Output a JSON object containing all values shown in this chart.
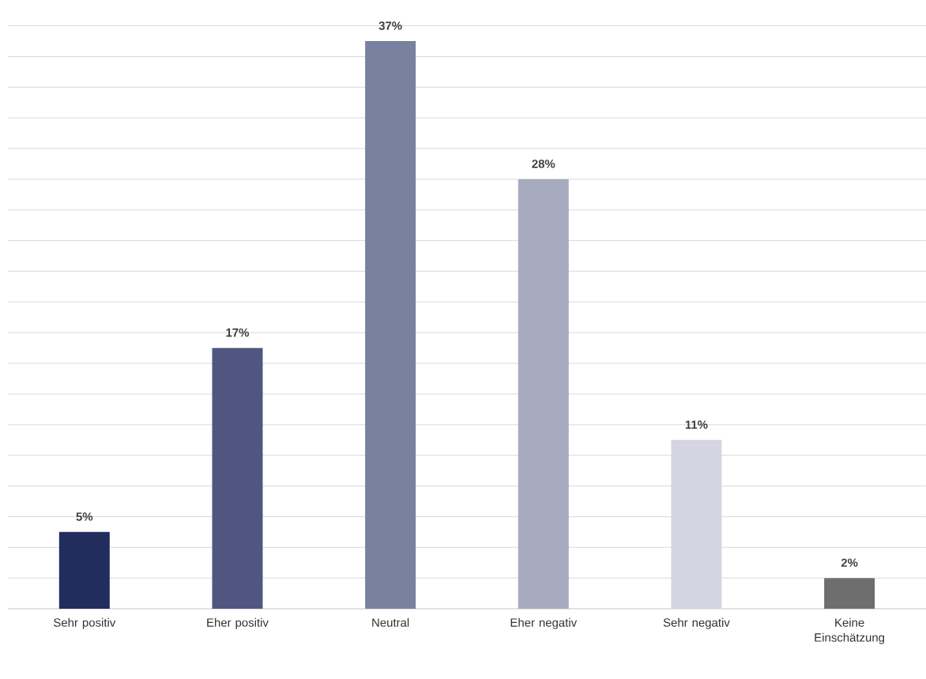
{
  "chart_data": {
    "type": "bar",
    "categories": [
      "Sehr positiv",
      "Eher positiv",
      "Neutral",
      "Eher negativ",
      "Sehr negativ",
      "Keine Einschätzung"
    ],
    "values": [
      5,
      17,
      37,
      28,
      11,
      2
    ],
    "colors": [
      "#222d5e",
      "#4f5781",
      "#78819f",
      "#a7abbf",
      "#d4d5e0",
      "#6e6e6e"
    ],
    "value_labels": [
      "5%",
      "17%",
      "37%",
      "28%",
      "11%",
      "2%"
    ],
    "grid": "y",
    "tick_labels": "x"
  }
}
